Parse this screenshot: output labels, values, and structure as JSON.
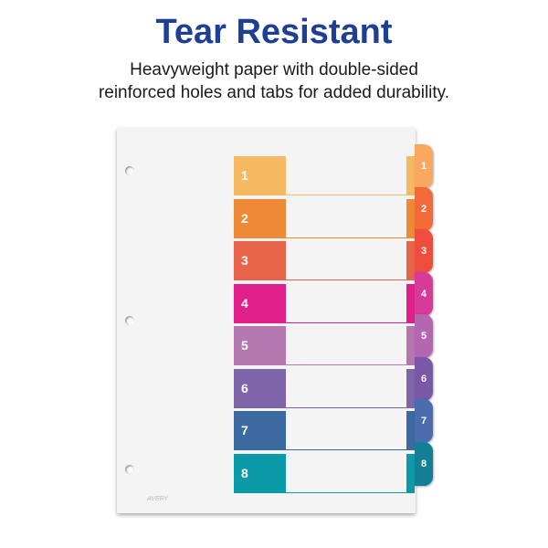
{
  "header": {
    "title": "Tear Resistant",
    "subtitle_line1": "Heavyweight paper with double-sided",
    "subtitle_line2": "reinforced holes and tabs for added durability."
  },
  "divider": {
    "logo": "AVERY",
    "rows": [
      {
        "label": "1",
        "color": "#f4b961",
        "tab_color": "#f9a860"
      },
      {
        "label": "2",
        "color": "#ee8a35",
        "tab_color": "#f26a38"
      },
      {
        "label": "3",
        "color": "#e5644a",
        "tab_color": "#ee4d3d"
      },
      {
        "label": "4",
        "color": "#e01f8a",
        "tab_color": "#d73a98"
      },
      {
        "label": "5",
        "color": "#b477ae",
        "tab_color": "#b566b0"
      },
      {
        "label": "6",
        "color": "#7e65a9",
        "tab_color": "#7a58a8"
      },
      {
        "label": "7",
        "color": "#3b6aa0",
        "tab_color": "#4b6db0"
      },
      {
        "label": "8",
        "color": "#0a9aa8",
        "tab_color": "#127f94"
      }
    ]
  }
}
